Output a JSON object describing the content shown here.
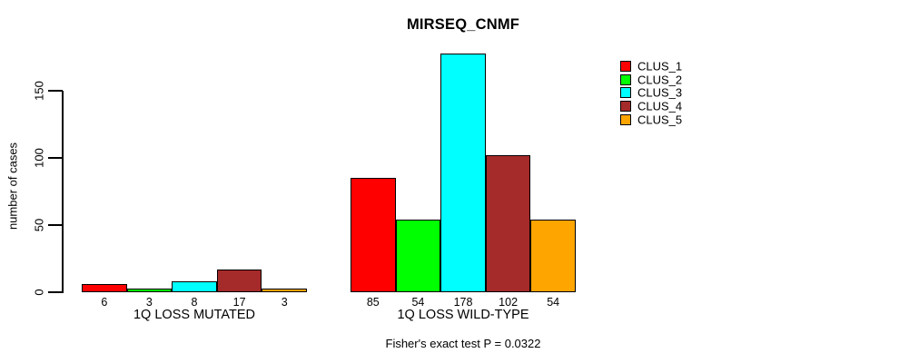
{
  "title": "MIRSEQ_CNMF",
  "y_axis": {
    "label": "number of cases",
    "ticks": [
      0,
      50,
      100,
      150
    ]
  },
  "caption": "Fisher's exact test P = 0.0322",
  "legend": {
    "position": "right",
    "entries": [
      {
        "label": "CLUS_1",
        "color": "#FF0000"
      },
      {
        "label": "CLUS_2",
        "color": "#00FF00"
      },
      {
        "label": "CLUS_3",
        "color": "#00FFFF"
      },
      {
        "label": "CLUS_4",
        "color": "#A52A2A"
      },
      {
        "label": "CLUS_5",
        "color": "#FFA500"
      }
    ]
  },
  "chart_data": {
    "type": "bar",
    "title": "MIRSEQ_CNMF",
    "ylabel": "number of cases",
    "xlabel": "",
    "categories": [
      "1Q LOSS MUTATED",
      "1Q LOSS WILD-TYPE"
    ],
    "series": [
      {
        "name": "CLUS_1",
        "color": "#FF0000",
        "values": [
          6,
          85
        ]
      },
      {
        "name": "CLUS_2",
        "color": "#00FF00",
        "values": [
          3,
          54
        ]
      },
      {
        "name": "CLUS_3",
        "color": "#00FFFF",
        "values": [
          8,
          178
        ]
      },
      {
        "name": "CLUS_4",
        "color": "#A52A2A",
        "values": [
          17,
          102
        ]
      },
      {
        "name": "CLUS_5",
        "color": "#FFA500",
        "values": [
          3,
          54
        ]
      }
    ],
    "bar_value_labels_shown": true,
    "yticks": [
      0,
      50,
      100,
      150
    ],
    "ylim": [
      0,
      178
    ],
    "grid": false,
    "legend_position": "right",
    "annotation": "Fisher's exact test P = 0.0322",
    "background": "#FFFFFF",
    "bar_border_color": "#000000"
  }
}
